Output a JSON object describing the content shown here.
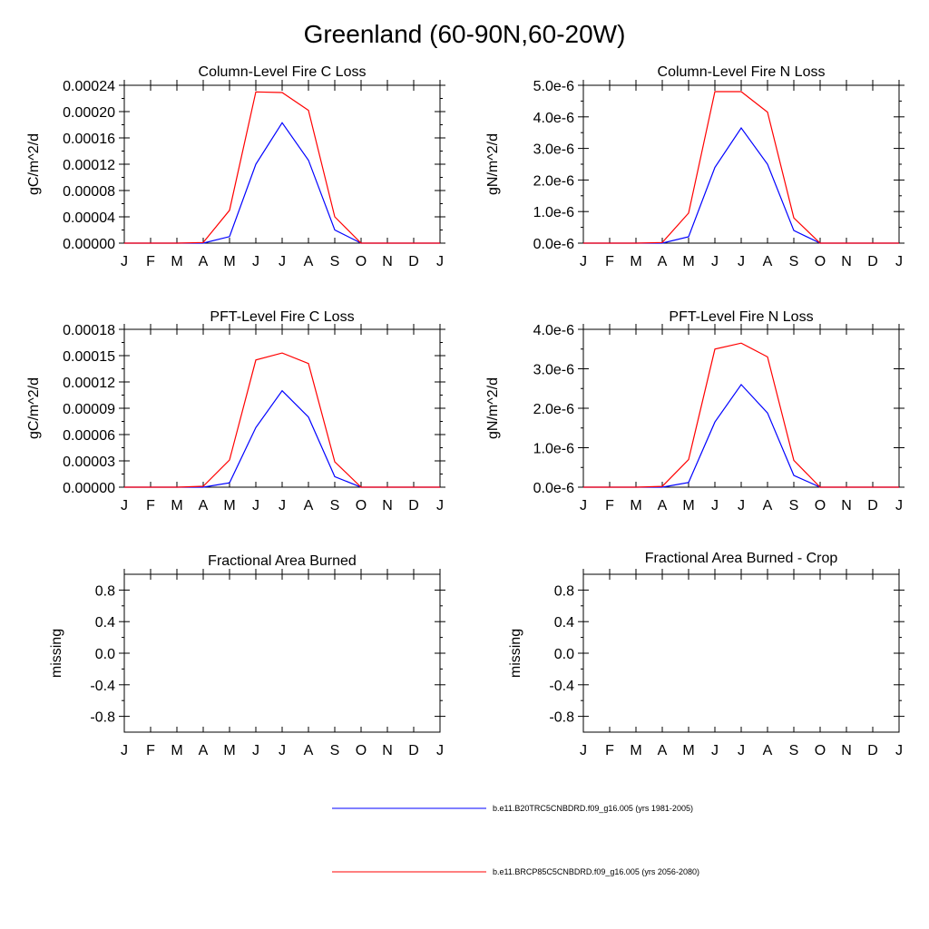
{
  "title": "Greenland (60-90N,60-20W)",
  "months": [
    "J",
    "F",
    "M",
    "A",
    "M",
    "J",
    "J",
    "A",
    "S",
    "O",
    "N",
    "D",
    "J"
  ],
  "colors": {
    "series1": "#0000ff",
    "series2": "#ff0000",
    "axis": "#000000"
  },
  "legend": [
    {
      "label": "b.e11.B20TRC5CNBDRD.f09_g16.005 (yrs 1981-2005)",
      "color": "#0000ff"
    },
    {
      "label": "b.e11.BRCP85C5CNBDRD.f09_g16.005 (yrs 2056-2080)",
      "color": "#ff0000"
    }
  ],
  "chart_data": [
    {
      "type": "line",
      "title": "Column-Level Fire C Loss",
      "ylabel": "gC/m^2/d",
      "ylim": [
        0,
        0.00024
      ],
      "yticks": [
        0,
        4e-05,
        8e-05,
        0.00012,
        0.00016,
        0.0002,
        0.00024
      ],
      "ytick_labels": [
        "0.00000",
        "0.00004",
        "0.00008",
        "0.00012",
        "0.00016",
        "0.00020",
        "0.00024"
      ],
      "series": [
        {
          "name": "b.e11.B20TRC5CNBDRD.f09_g16.005 (yrs 1981-2005)",
          "color": "#0000ff",
          "values": [
            0,
            0,
            0,
            0,
            1e-05,
            0.00012,
            0.000183,
            0.000126,
            2e-05,
            0,
            0,
            0,
            0
          ]
        },
        {
          "name": "b.e11.BRCP85C5CNBDRD.f09_g16.005 (yrs 2056-2080)",
          "color": "#ff0000",
          "values": [
            0,
            0,
            0,
            1e-06,
            5e-05,
            0.00023,
            0.000229,
            0.000202,
            4e-05,
            0,
            0,
            0,
            0
          ]
        }
      ]
    },
    {
      "type": "line",
      "title": "Column-Level Fire N Loss",
      "ylabel": "gN/m^2/d",
      "ylim": [
        0,
        5e-06
      ],
      "yticks": [
        0,
        1e-06,
        2e-06,
        3e-06,
        4e-06,
        5e-06
      ],
      "ytick_labels": [
        "0.0e-6",
        "1.0e-6",
        "2.0e-6",
        "3.0e-6",
        "4.0e-6",
        "5.0e-6"
      ],
      "series": [
        {
          "name": "b.e11.B20TRC5CNBDRD.f09_g16.005 (yrs 1981-2005)",
          "color": "#0000ff",
          "values": [
            0,
            0,
            0,
            0,
            2e-07,
            2.4e-06,
            3.65e-06,
            2.5e-06,
            4e-07,
            0,
            0,
            0,
            0
          ]
        },
        {
          "name": "b.e11.BRCP85C5CNBDRD.f09_g16.005 (yrs 2056-2080)",
          "color": "#ff0000",
          "values": [
            0,
            0,
            0,
            2e-08,
            9.5e-07,
            4.8e-06,
            4.8e-06,
            4.15e-06,
            8e-07,
            0,
            0,
            0,
            0
          ]
        }
      ]
    },
    {
      "type": "line",
      "title": "PFT-Level Fire C Loss",
      "ylabel": "gC/m^2/d",
      "ylim": [
        0,
        0.00018
      ],
      "yticks": [
        0,
        3e-05,
        6e-05,
        9e-05,
        0.00012,
        0.00015,
        0.00018
      ],
      "ytick_labels": [
        "0.00000",
        "0.00003",
        "0.00006",
        "0.00009",
        "0.00012",
        "0.00015",
        "0.00018"
      ],
      "series": [
        {
          "name": "b.e11.B20TRC5CNBDRD.f09_g16.005 (yrs 1981-2005)",
          "color": "#0000ff",
          "values": [
            0,
            0,
            0,
            0,
            5e-06,
            6.8e-05,
            0.00011,
            8e-05,
            1.2e-05,
            0,
            0,
            0,
            0
          ]
        },
        {
          "name": "b.e11.BRCP85C5CNBDRD.f09_g16.005 (yrs 2056-2080)",
          "color": "#ff0000",
          "values": [
            0,
            0,
            0,
            1e-06,
            3.1e-05,
            0.000145,
            0.000153,
            0.000141,
            2.9e-05,
            0,
            0,
            0,
            0
          ]
        }
      ]
    },
    {
      "type": "line",
      "title": "PFT-Level Fire N Loss",
      "ylabel": "gN/m^2/d",
      "ylim": [
        0,
        4e-06
      ],
      "yticks": [
        0,
        1e-06,
        2e-06,
        3e-06,
        4e-06
      ],
      "ytick_labels": [
        "0.0e-6",
        "1.0e-6",
        "2.0e-6",
        "3.0e-6",
        "4.0e-6"
      ],
      "series": [
        {
          "name": "b.e11.B20TRC5CNBDRD.f09_g16.005 (yrs 1981-2005)",
          "color": "#0000ff",
          "values": [
            0,
            0,
            0,
            0,
            1.2e-07,
            1.65e-06,
            2.6e-06,
            1.88e-06,
            3e-07,
            0,
            0,
            0,
            0
          ]
        },
        {
          "name": "b.e11.BRCP85C5CNBDRD.f09_g16.005 (yrs 2056-2080)",
          "color": "#ff0000",
          "values": [
            0,
            0,
            0,
            2e-08,
            7e-07,
            3.5e-06,
            3.65e-06,
            3.3e-06,
            6.8e-07,
            0,
            0,
            0,
            0
          ]
        }
      ]
    },
    {
      "type": "line",
      "title": "Fractional Area Burned",
      "ylabel": "missing",
      "ylim": [
        -1,
        1
      ],
      "yticks": [
        -0.8,
        -0.4,
        0,
        0.4,
        0.8
      ],
      "ytick_labels": [
        "-0.8",
        "-0.4",
        "0.0",
        "0.4",
        "0.8"
      ],
      "series": []
    },
    {
      "type": "line",
      "title": "Fractional Area Burned - Crop",
      "ylabel": "missing",
      "ylim": [
        -1,
        1
      ],
      "yticks": [
        -0.8,
        -0.4,
        0,
        0.4,
        0.8
      ],
      "ytick_labels": [
        "-0.8",
        "-0.4",
        "0.0",
        "0.4",
        "0.8"
      ],
      "series": []
    }
  ]
}
